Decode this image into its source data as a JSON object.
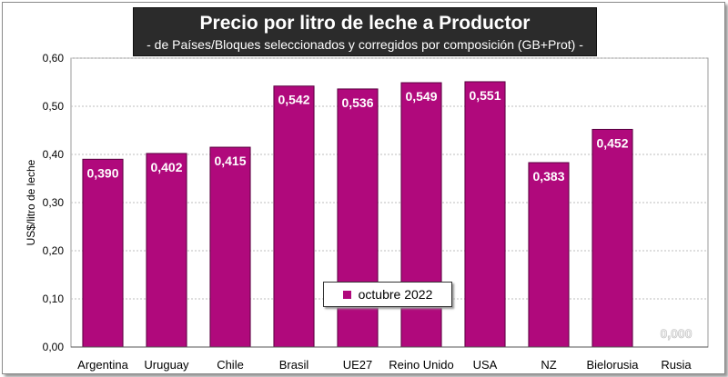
{
  "chart_data": {
    "type": "bar",
    "title": "Precio por litro de leche a Productor",
    "subtitle": "-  de Países/Bloques seleccionados y corregidos por composición (GB+Prot) -",
    "ylabel": "US$/litro de leche",
    "xlabel": "",
    "ylim": [
      0,
      0.6
    ],
    "yticks": [
      "0,00",
      "0,10",
      "0,20",
      "0,30",
      "0,40",
      "0,50",
      "0,60"
    ],
    "categories": [
      "Argentina",
      "Uruguay",
      "Chile",
      "Brasil",
      "UE27",
      "Reino Unido",
      "USA",
      "NZ",
      "Bielorusia",
      "Rusia"
    ],
    "series": [
      {
        "name": "octubre 2022",
        "values": [
          0.39,
          0.402,
          0.415,
          0.542,
          0.536,
          0.549,
          0.551,
          0.383,
          0.452,
          0
        ],
        "labels": [
          "0,390",
          "0,402",
          "0,415",
          "0,542",
          "0,536",
          "0,549",
          "0,551",
          "0,383",
          "0,452",
          "0,000"
        ]
      }
    ],
    "grid": true,
    "legend_position": "bottom-center",
    "colors": {
      "bar": "#B0097C",
      "bar_stroke": "#5a0040",
      "plot_bg": "#ffffff",
      "title_bg": "#2b2b2b",
      "grid": "#bdbdbd"
    }
  }
}
